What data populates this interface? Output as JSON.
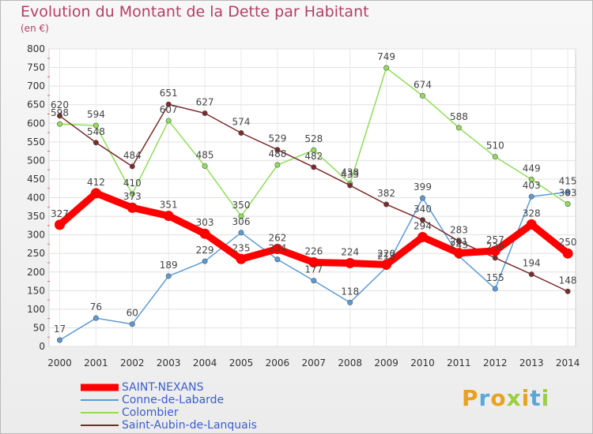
{
  "title": "Evolution du Montant de la Dette par Habitant",
  "unit_label": "(en €)",
  "logo_text": "Proxiti",
  "chart_data": {
    "type": "line",
    "title": "Evolution du Montant de la Dette par Habitant",
    "ylabel": "(en €)",
    "xlabel": "",
    "x": [
      "2000",
      "2001",
      "2002",
      "2003",
      "2004",
      "2005",
      "2006",
      "2007",
      "2008",
      "2009",
      "2010",
      "2011",
      "2012",
      "2013",
      "2014"
    ],
    "ylim": [
      0,
      800
    ],
    "yticks": [
      0,
      50,
      100,
      150,
      200,
      250,
      300,
      350,
      400,
      450,
      500,
      550,
      600,
      650,
      700,
      750,
      800
    ],
    "grid": true,
    "legend_position": "bottom",
    "series": [
      {
        "name": "SAINT-NEXANS",
        "color": "#ff0000",
        "values": [
          327,
          412,
          373,
          351,
          303,
          235,
          262,
          226,
          224,
          220,
          294,
          251,
          257,
          328,
          250
        ],
        "labels": [
          "327",
          "412",
          "373",
          "351",
          "303",
          "235",
          "262",
          "226",
          "224",
          "220",
          "294",
          "251",
          "257",
          "328",
          "250"
        ]
      },
      {
        "name": "Conne-de-Labarde",
        "color": "#5b9bd5",
        "values": [
          17,
          76,
          60,
          189,
          229,
          306,
          234,
          177,
          118,
          213,
          399,
          243,
          155,
          403,
          415
        ],
        "labels": [
          "17",
          "76",
          "60",
          "189",
          "229",
          "306",
          "234",
          "177",
          "118",
          "213",
          "399",
          "243",
          "155",
          "403",
          "415"
        ]
      },
      {
        "name": "Colombier",
        "color": "#90dd5a",
        "values": [
          598,
          594,
          410,
          607,
          485,
          350,
          488,
          528,
          438,
          749,
          674,
          588,
          510,
          449,
          383
        ],
        "labels": [
          "598",
          "594",
          "410",
          "607",
          "485",
          "350",
          "488",
          "528",
          "438",
          "749",
          "674",
          "588",
          "510",
          "449",
          "383"
        ]
      },
      {
        "name": "Saint-Aubin-de-Lanquais",
        "color": "#7b2a2a",
        "values": [
          620,
          548,
          484,
          651,
          627,
          574,
          529,
          482,
          433,
          382,
          340,
          283,
          238,
          194,
          148
        ],
        "labels": [
          "620",
          "548",
          "484",
          "651",
          "627",
          "574",
          "529",
          "482",
          "433",
          "382",
          "340",
          "283",
          "238",
          "194",
          "148"
        ]
      }
    ]
  }
}
